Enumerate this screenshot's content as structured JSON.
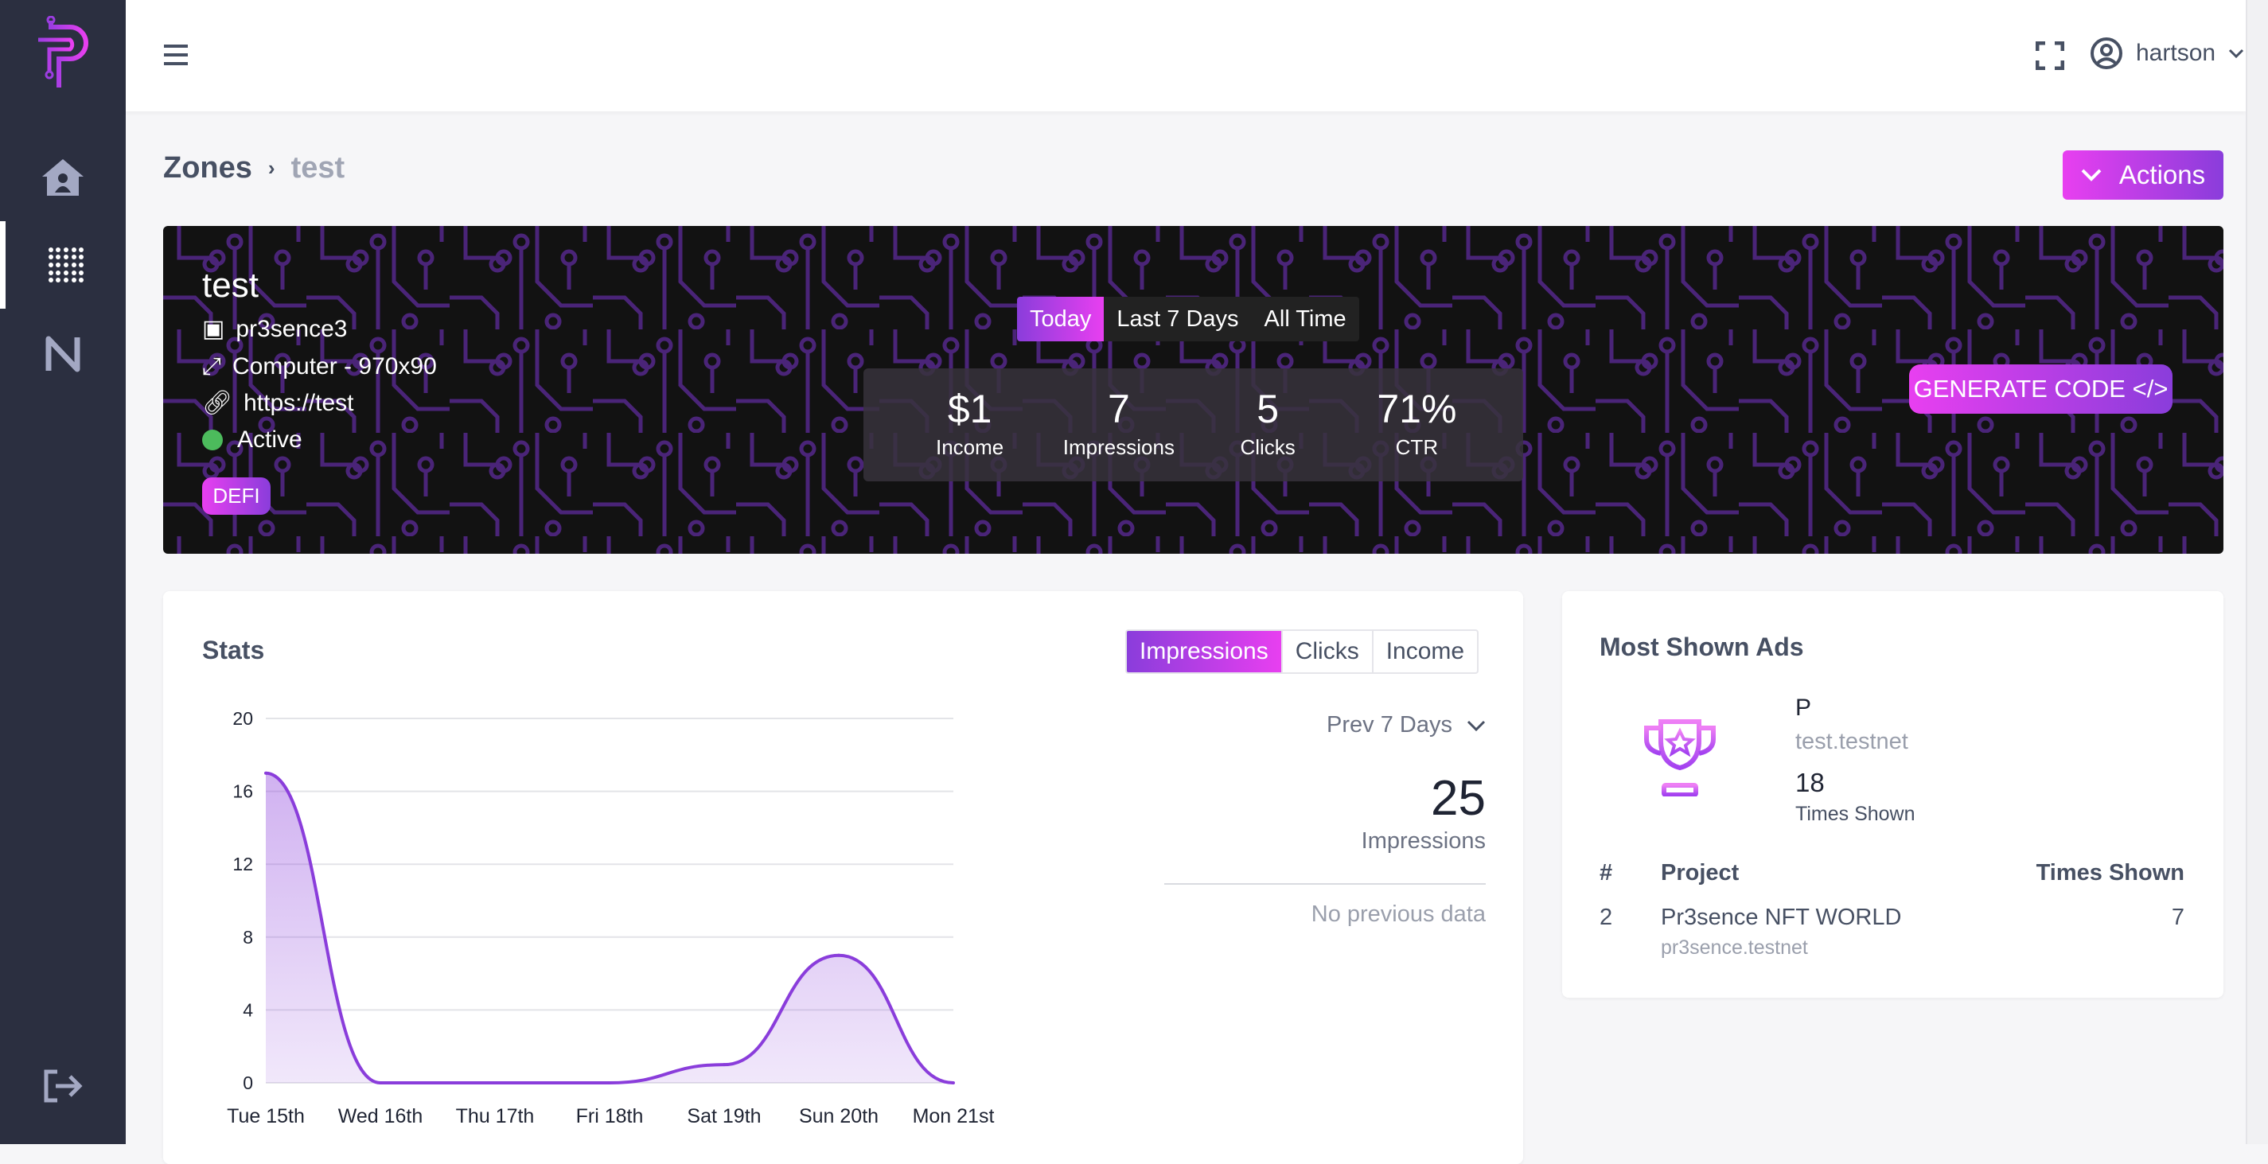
{
  "user": {
    "name": "hartson"
  },
  "breadcrumb": {
    "root": "Zones",
    "current": "test"
  },
  "actions_label": "Actions",
  "zone": {
    "name": "test",
    "owner": "pr3sence3",
    "format": "Computer - 970x90",
    "url": "https://test",
    "status": "Active",
    "tag": "DEFI"
  },
  "period_tabs": [
    "Today",
    "Last 7 Days",
    "All Time"
  ],
  "summary": [
    {
      "value": "$1",
      "label": "Income"
    },
    {
      "value": "7",
      "label": "Impressions"
    },
    {
      "value": "5",
      "label": "Clicks"
    },
    {
      "value": "71%",
      "label": "CTR"
    }
  ],
  "generate_code_label": "GENERATE CODE </>",
  "stats": {
    "title": "Stats",
    "tabs": [
      "Impressions",
      "Clicks",
      "Income"
    ],
    "range": "Prev 7 Days",
    "total": "25",
    "total_label": "Impressions",
    "compare": "No previous data"
  },
  "chart_data": {
    "type": "area",
    "title": "Impressions",
    "categories": [
      "Tue 15th",
      "Wed 16th",
      "Thu 17th",
      "Fri 18th",
      "Sat 19th",
      "Sun 20th",
      "Mon 21st"
    ],
    "values": [
      17,
      0,
      0,
      0,
      1,
      7,
      0
    ],
    "yticks": [
      0,
      4,
      8,
      12,
      16,
      20
    ],
    "ylim": [
      0,
      20
    ],
    "grid": true,
    "color": "#8a3ddb"
  },
  "most_shown": {
    "title": "Most Shown Ads",
    "top": {
      "name": "P",
      "account": "test.testnet",
      "count": "18",
      "count_label": "Times Shown"
    },
    "columns": [
      "#",
      "Project",
      "Times Shown"
    ],
    "rows": [
      {
        "rank": "2",
        "project": "Pr3sence NFT WORLD",
        "account": "pr3sence.testnet",
        "times": "7"
      }
    ]
  },
  "colors": {
    "accent": "#e83ff0",
    "accent2": "#8a3ddb",
    "sidebar": "#2b2f40",
    "active": "#4cbb5c"
  }
}
